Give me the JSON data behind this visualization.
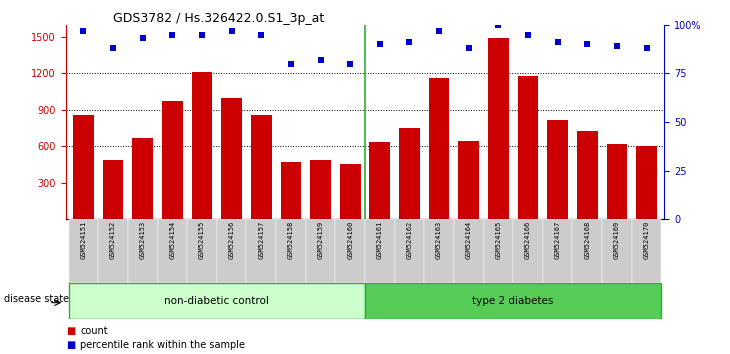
{
  "title": "GDS3782 / Hs.326422.0.S1_3p_at",
  "samples": [
    "GSM524151",
    "GSM524152",
    "GSM524153",
    "GSM524154",
    "GSM524155",
    "GSM524156",
    "GSM524157",
    "GSM524158",
    "GSM524159",
    "GSM524160",
    "GSM524161",
    "GSM524162",
    "GSM524163",
    "GSM524164",
    "GSM524165",
    "GSM524166",
    "GSM524167",
    "GSM524168",
    "GSM524169",
    "GSM524170"
  ],
  "counts": [
    855,
    490,
    670,
    970,
    1210,
    1000,
    855,
    470,
    490,
    460,
    640,
    755,
    1165,
    645,
    1490,
    1175,
    820,
    730,
    620,
    600
  ],
  "percentile_ranks": [
    97,
    88,
    93,
    95,
    95,
    97,
    95,
    80,
    82,
    80,
    90,
    91,
    97,
    88,
    100,
    95,
    91,
    90,
    89,
    88
  ],
  "non_diabetic_count": 10,
  "type2_count": 10,
  "ylim_left": [
    0,
    1600
  ],
  "ylim_right": [
    0,
    100
  ],
  "yticks_left": [
    300,
    600,
    900,
    1200,
    1500
  ],
  "yticks_right": [
    0,
    25,
    50,
    75,
    100
  ],
  "bar_color": "#cc0000",
  "dot_color": "#0000cc",
  "group1_label": "non-diabetic control",
  "group2_label": "type 2 diabetes",
  "group1_color": "#ccffcc",
  "group2_color": "#55cc55",
  "xlabel_disease": "disease state",
  "legend_count": "count",
  "legend_pct": "percentile rank within the sample",
  "bg_color": "#ffffff",
  "tick_bg": "#cccccc",
  "gridline_color": "#000000",
  "gridline_vals": [
    600,
    900,
    1200
  ]
}
